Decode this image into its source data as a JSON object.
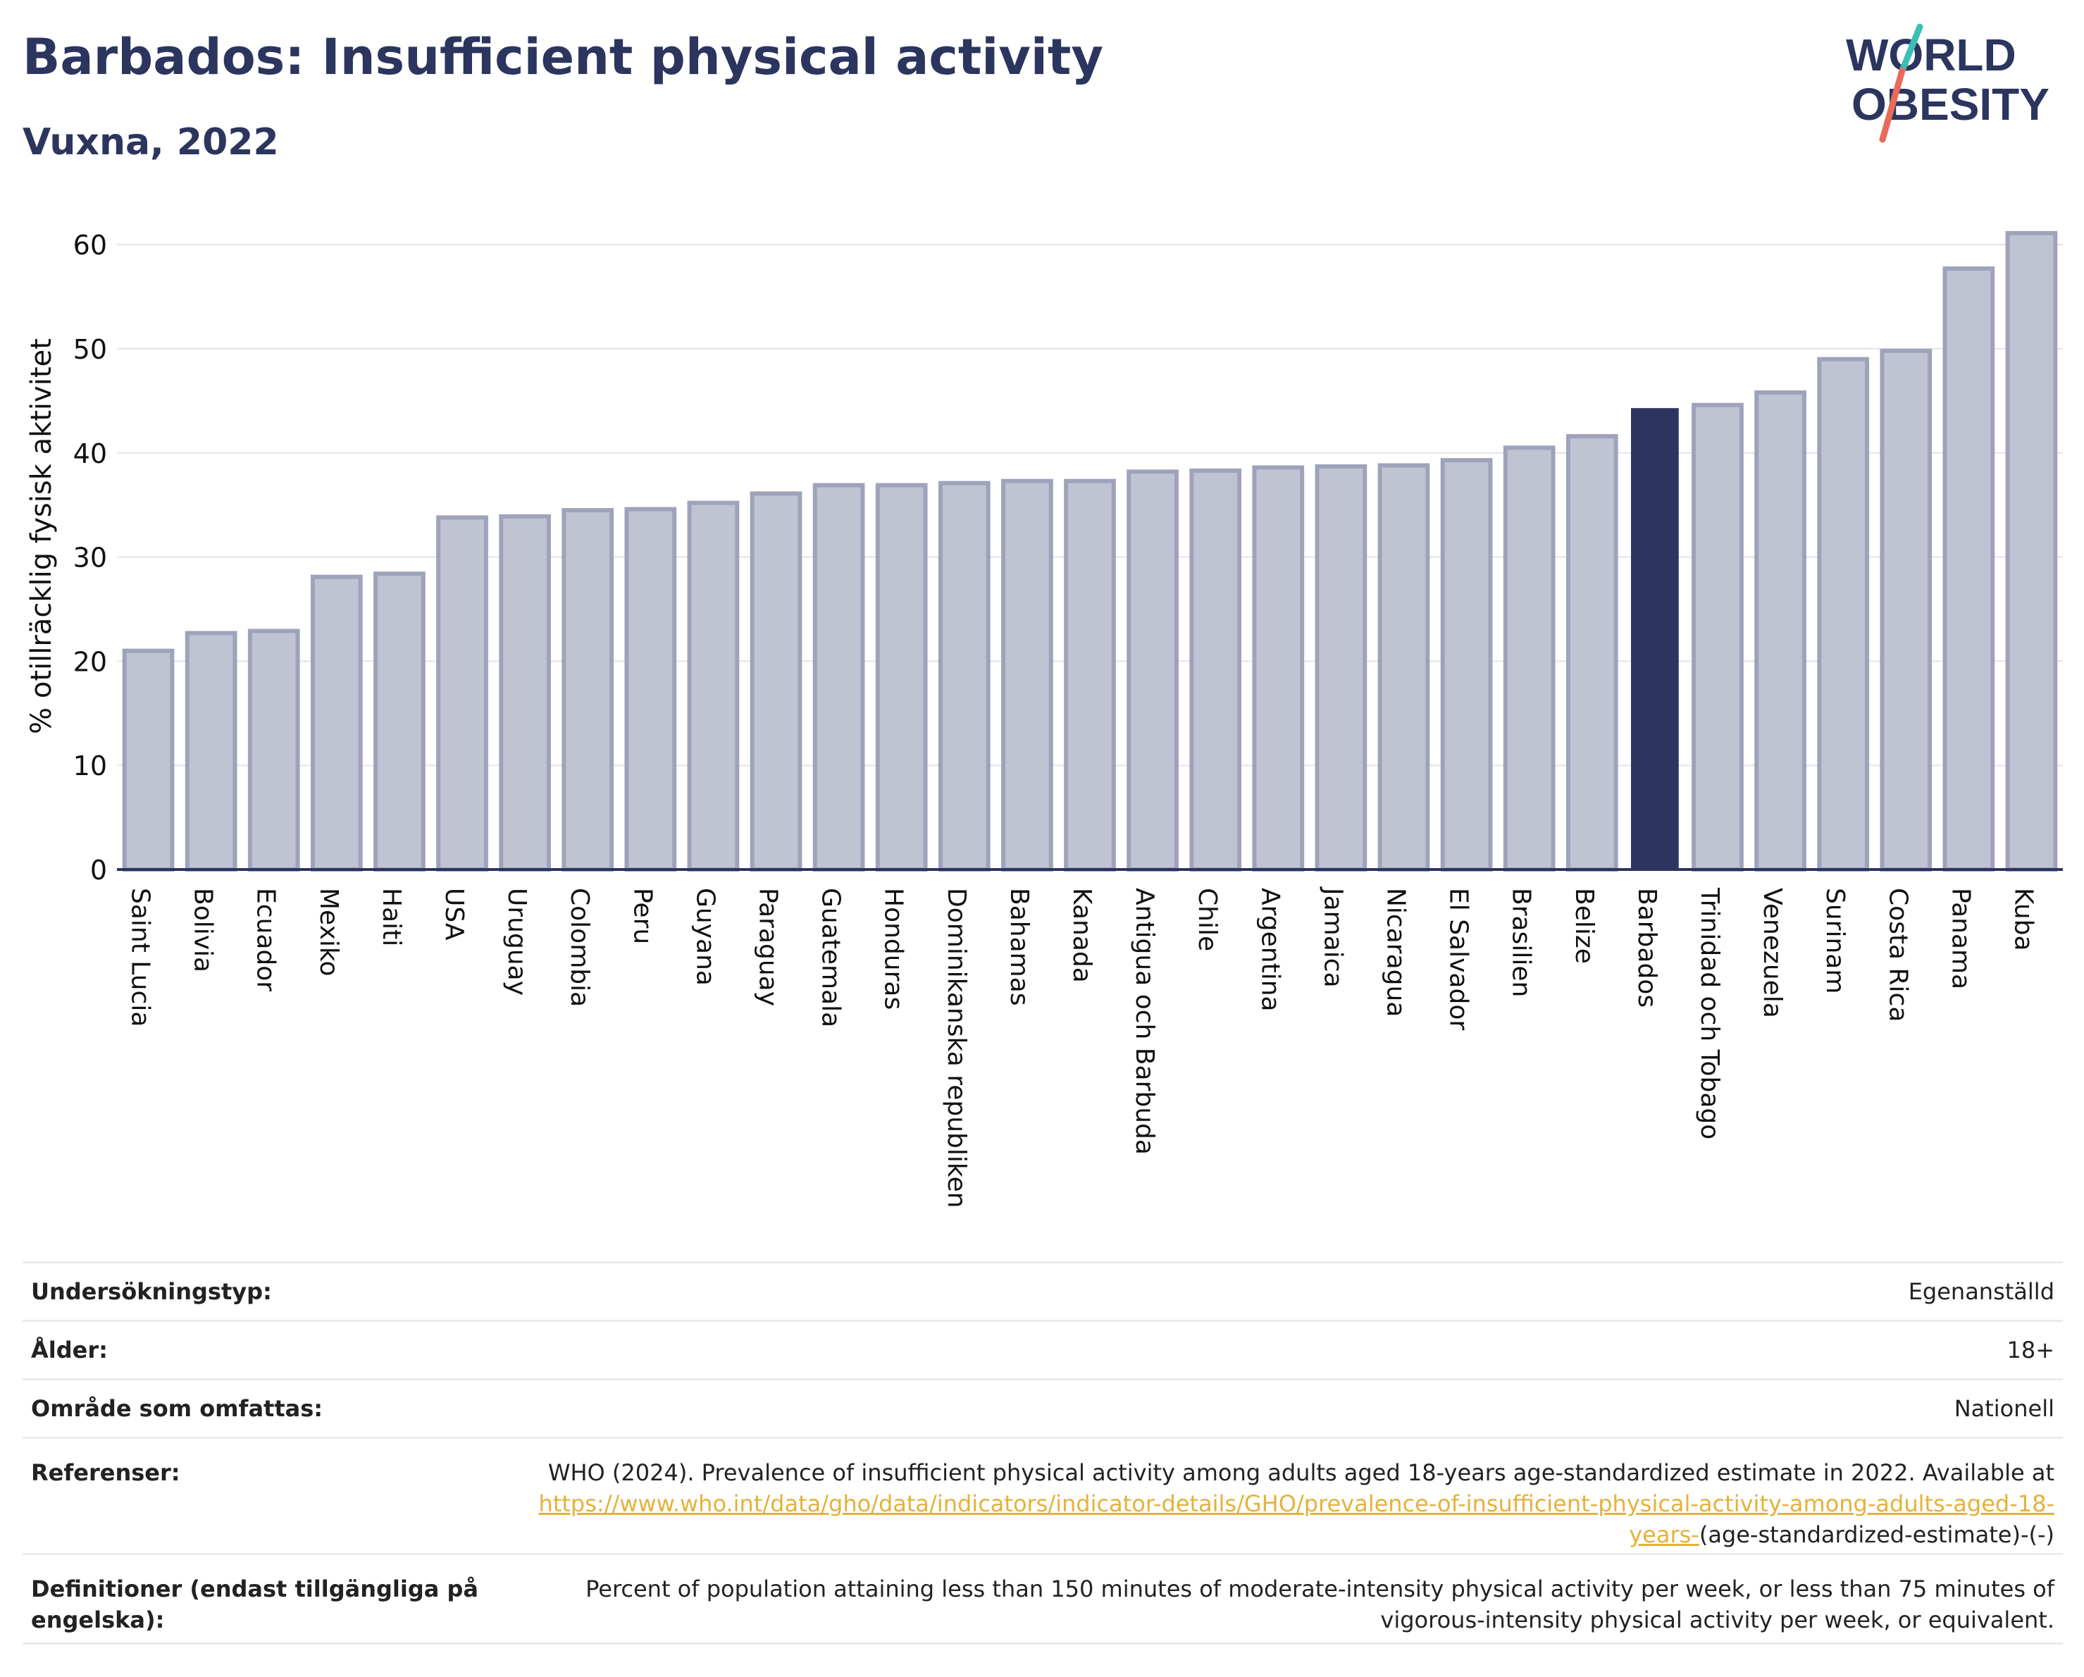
{
  "title": "Barbados: Insufficient physical activity",
  "subtitle": "Vuxna, 2022",
  "logo": {
    "line1": "WORLD",
    "line2": "OBESITY",
    "colors": {
      "text": "#2b355e",
      "slash_top": "#3bbfb4",
      "slash_bottom": "#e86b5a"
    }
  },
  "colors": {
    "bar": "#c0c3d1",
    "bar_stroke": "#9ea3bb",
    "highlight": "#2b355e",
    "axis": "#2b355e",
    "grid": "#e8e8ec"
  },
  "chart_data": {
    "type": "bar",
    "title": "",
    "xlabel": "",
    "ylabel": "% otillräcklig fysisk aktivitet",
    "ylim": [
      0,
      64
    ],
    "yticks": [
      0,
      10,
      20,
      30,
      40,
      50,
      60
    ],
    "grid": true,
    "highlight": "Barbados",
    "categories": [
      "Saint Lucia",
      "Bolivia",
      "Ecuador",
      "Mexiko",
      "Haiti",
      "USA",
      "Uruguay",
      "Colombia",
      "Peru",
      "Guyana",
      "Paraguay",
      "Guatemala",
      "Honduras",
      "Dominikanska republiken",
      "Bahamas",
      "Kanada",
      "Antigua och Barbuda",
      "Chile",
      "Argentina",
      "Jamaica",
      "Nicaragua",
      "El Salvador",
      "Brasilien",
      "Belize",
      "Barbados",
      "Trinidad och Tobago",
      "Venezuela",
      "Surinam",
      "Costa Rica",
      "Panama",
      "Kuba"
    ],
    "values": [
      21.0,
      22.7,
      22.9,
      28.1,
      28.4,
      33.8,
      33.9,
      34.5,
      34.6,
      35.2,
      36.1,
      36.9,
      36.9,
      37.1,
      37.3,
      37.3,
      38.2,
      38.3,
      38.6,
      38.7,
      38.8,
      39.3,
      40.5,
      41.6,
      44.3,
      44.6,
      45.8,
      49.0,
      49.8,
      57.7,
      61.1
    ]
  },
  "meta": {
    "survey_type_label": "Undersökningstyp:",
    "survey_type_value": "Egenanställd",
    "age_label": "Ålder:",
    "age_value": "18+",
    "area_label": "Område som omfattas:",
    "area_value": "Nationell",
    "refs_label": "Referenser:",
    "refs_text": "WHO (2024). Prevalence of insufficient physical activity among adults aged 18-years age-standardized estimate in 2022. Available at",
    "refs_link": "https://www.who.int/data/gho/data/indicators/indicator-details/GHO/prevalence-of-insufficient-physical-activity-among-adults-aged-18-years-",
    "refs_tail": "(age-standardized-estimate)-(-)",
    "defs_label": "Definitioner (endast tillgängliga på engelska):",
    "defs_text": "Percent of population attaining less than 150 minutes of moderate-intensity physical activity per week, or less than 75 minutes of vigorous-intensity physical activity per week, or equivalent."
  }
}
